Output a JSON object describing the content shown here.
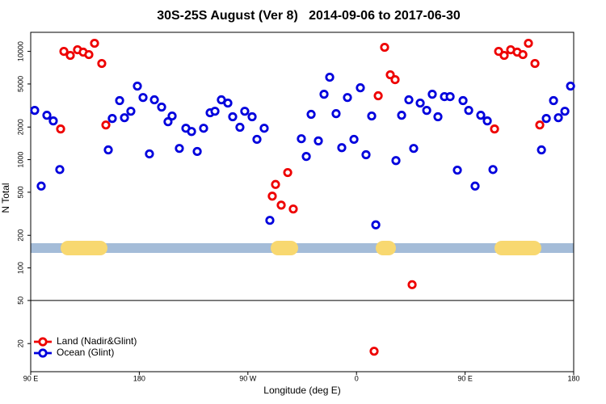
{
  "chart_data": {
    "type": "scatter",
    "title": "30S-25S August (Ver 8)   2014-09-06 to 2017-06-30",
    "x_label": "Longitude (deg E)",
    "y_label": "N Total",
    "log_y": true,
    "legend_position": "lower left",
    "reference_line": 50,
    "xlim": [
      90,
      540
    ],
    "xticks": [
      {
        "value": 90,
        "label": "90 E"
      },
      180,
      {
        "value": 270,
        "label": "90 W"
      },
      {
        "value": 360,
        "label": "0"
      },
      {
        "value": 450,
        "label": "90 E"
      },
      {
        "value": 540,
        "label": "180"
      }
    ],
    "ylim": [
      11,
      15000
    ],
    "yticks": [
      20,
      50,
      100,
      200,
      500,
      1000,
      2000,
      5000,
      10000
    ],
    "series": [
      {
        "name": "Land (Nadir&Glint)",
        "color": "#ee0000",
        "x": [
          114.8,
          117.5,
          122.8,
          128.8,
          133.5,
          138.2,
          142.9,
          148.9,
          152.3,
          290.2,
          292.9,
          297.6,
          303.0,
          307.6,
          374.6,
          378.0,
          383.3,
          388.0,
          392.0,
          406.1,
          474.4,
          477.8,
          482.4,
          487.8,
          493.2,
          497.9,
          502.5,
          507.9,
          511.9
        ],
        "values": [
          1920,
          10000,
          9180,
          10350,
          9840,
          9340,
          11880,
          7730,
          2090,
          460,
          590,
          380,
          760,
          350,
          17,
          3890,
          10900,
          6080,
          5480,
          70,
          1920,
          10000,
          9180,
          10350,
          9840,
          9340,
          11880,
          7730,
          2090
        ]
      },
      {
        "name": "Ocean (Glint)",
        "color": "#0000dd",
        "x": [
          93.3,
          98.7,
          103.4,
          108.7,
          114.1,
          154.3,
          157.6,
          163.7,
          167.7,
          173.0,
          178.4,
          183.1,
          188.4,
          192.5,
          198.5,
          203.8,
          207.2,
          213.2,
          218.6,
          223.3,
          228.0,
          233.3,
          238.7,
          242.7,
          248.0,
          253.4,
          257.4,
          263.4,
          267.4,
          273.5,
          277.5,
          283.5,
          288.2,
          314.3,
          318.4,
          322.4,
          328.4,
          333.1,
          337.8,
          343.1,
          347.8,
          352.5,
          357.9,
          363.2,
          367.9,
          372.6,
          376.0,
          392.7,
          397.4,
          403.4,
          407.4,
          412.8,
          418.2,
          422.8,
          427.5,
          432.9,
          437.6,
          443.6,
          448.3,
          453.0,
          458.3,
          463.0,
          468.4,
          473.1,
          513.3,
          517.3,
          523.3,
          527.3,
          532.7,
          537.4
        ],
        "values": [
          2850,
          570,
          2570,
          2280,
          810,
          1230,
          2400,
          3510,
          2440,
          2800,
          4780,
          3750,
          1130,
          3570,
          3060,
          2240,
          2530,
          1270,
          1950,
          1820,
          1190,
          1950,
          2710,
          2800,
          3570,
          3330,
          2490,
          1990,
          2800,
          2490,
          1540,
          1950,
          275,
          1560,
          1070,
          2620,
          1490,
          4020,
          5770,
          2660,
          1290,
          3750,
          1540,
          4610,
          1110,
          2530,
          250,
          980,
          2570,
          3570,
          1270,
          3330,
          2850,
          4020,
          2490,
          3820,
          3820,
          800,
          3510,
          2850,
          570,
          2570,
          2280,
          810,
          1230,
          2400,
          3510,
          2440,
          2800,
          4780
        ]
      }
    ]
  }
}
